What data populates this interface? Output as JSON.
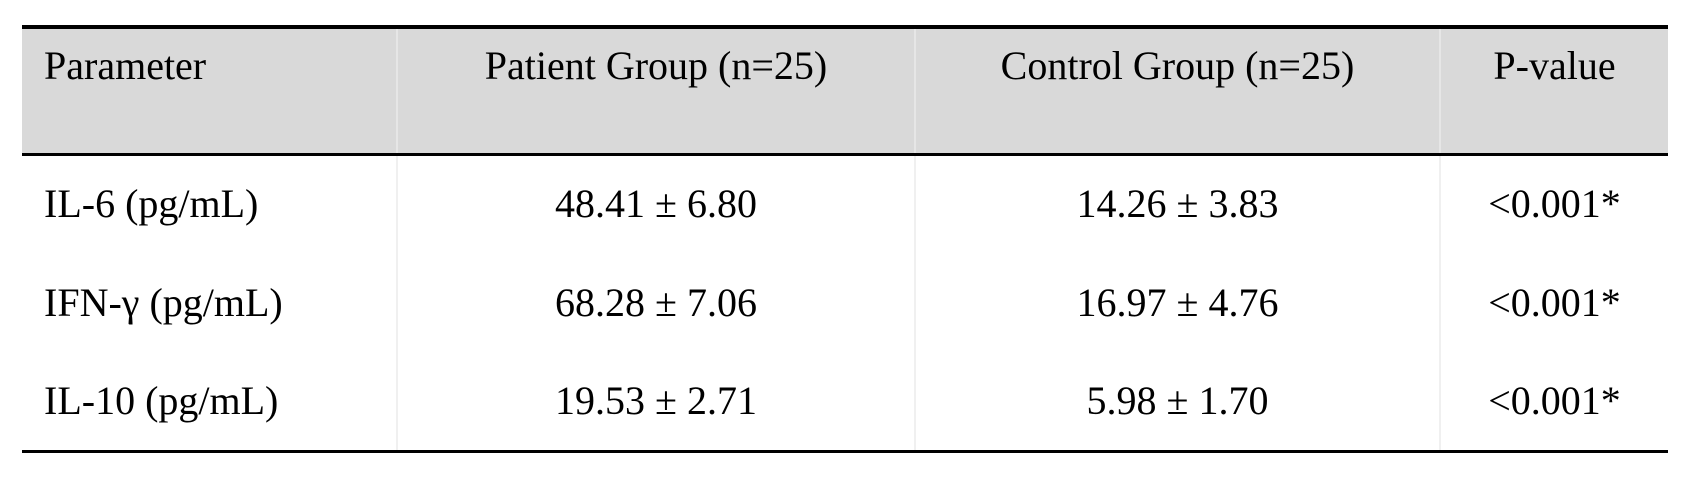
{
  "table": {
    "columns": [
      "Parameter",
      "Patient Group (n=25)",
      "Control Group (n=25)",
      "P-value"
    ],
    "rows": [
      {
        "parameter": "IL-6 (pg/mL)",
        "patient": "48.41 ± 6.80",
        "control": "14.26 ± 3.83",
        "p_value": "<0.001*"
      },
      {
        "parameter": "IFN-γ (pg/mL)",
        "patient": "68.28 ± 7.06",
        "control": "16.97 ± 4.76",
        "p_value": "<0.001*"
      },
      {
        "parameter": "IL-10 (pg/mL)",
        "patient": "19.53 ± 2.71",
        "control": "5.98 ± 1.70",
        "p_value": "<0.001*"
      }
    ],
    "colors": {
      "header_bg": "#d9d9d9",
      "border": "#000000",
      "column_divider": "#e6e6e6"
    }
  }
}
